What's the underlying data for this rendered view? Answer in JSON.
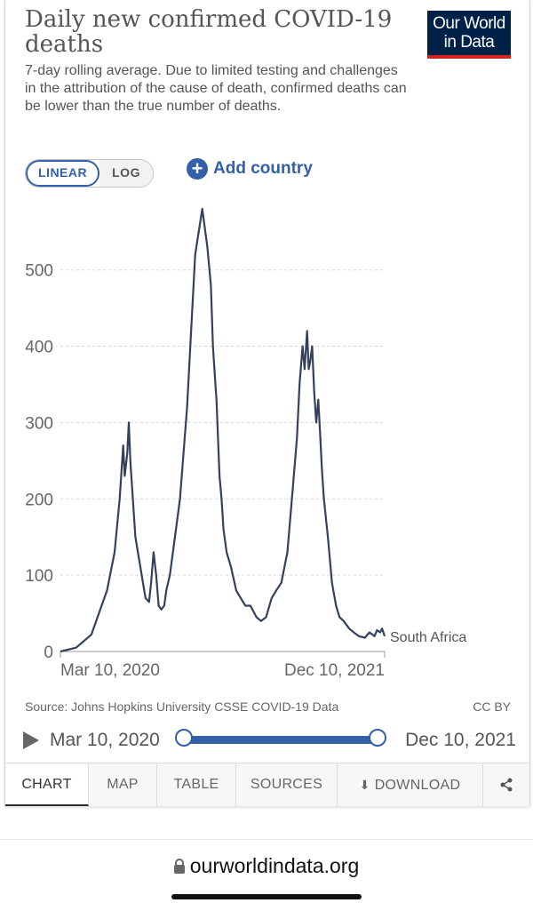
{
  "header": {
    "title": "Daily new confirmed COVID-19 deaths",
    "subtitle": "7-day rolling average. Due to limited testing and challenges in the attribution of the cause of death, confirmed deaths can be lower than the true number of deaths.",
    "logo_line1": "Our World",
    "logo_line2": "in Data"
  },
  "controls": {
    "linear_label": "LINEAR",
    "log_label": "LOG",
    "add_country_label": "Add country",
    "add_icon": "plus-circle-icon"
  },
  "chart_data": {
    "type": "line",
    "title": "Daily new confirmed COVID-19 deaths",
    "xlabel": "",
    "ylabel": "",
    "x_tick_labels": [
      "Mar 10, 2020",
      "Dec 10, 2021"
    ],
    "y_ticks": [
      0,
      100,
      200,
      300,
      400,
      500
    ],
    "ylim": [
      0,
      580
    ],
    "xlim": [
      "2020-03-10",
      "2021-12-10"
    ],
    "grid": "horizontal dashed",
    "series": [
      {
        "name": "South Africa",
        "color": "#33415c",
        "x": [
          "2020-03-10",
          "2020-04-10",
          "2020-05-10",
          "2020-06-10",
          "2020-06-25",
          "2020-07-05",
          "2020-07-12",
          "2020-07-15",
          "2020-07-20",
          "2020-07-23",
          "2020-07-26",
          "2020-08-05",
          "2020-08-15",
          "2020-08-25",
          "2020-09-01",
          "2020-09-05",
          "2020-09-10",
          "2020-09-15",
          "2020-09-20",
          "2020-09-25",
          "2020-10-01",
          "2020-10-05",
          "2020-10-12",
          "2020-10-20",
          "2020-11-01",
          "2020-11-15",
          "2020-12-01",
          "2020-12-15",
          "2020-12-25",
          "2021-01-01",
          "2021-01-05",
          "2021-01-10",
          "2021-01-12",
          "2021-01-15",
          "2021-01-18",
          "2021-01-22",
          "2021-01-26",
          "2021-02-01",
          "2021-02-10",
          "2021-02-20",
          "2021-03-01",
          "2021-03-10",
          "2021-03-20",
          "2021-04-01",
          "2021-04-10",
          "2021-04-20",
          "2021-05-01",
          "2021-05-10",
          "2021-05-20",
          "2021-06-01",
          "2021-06-10",
          "2021-06-20",
          "2021-06-25",
          "2021-07-01",
          "2021-07-05",
          "2021-07-10",
          "2021-07-13",
          "2021-07-16",
          "2021-07-20",
          "2021-07-24",
          "2021-07-28",
          "2021-08-01",
          "2021-08-05",
          "2021-08-08",
          "2021-08-12",
          "2021-08-20",
          "2021-08-28",
          "2021-09-05",
          "2021-09-12",
          "2021-09-20",
          "2021-10-01",
          "2021-10-10",
          "2021-10-20",
          "2021-11-01",
          "2021-11-10",
          "2021-11-20",
          "2021-11-25",
          "2021-12-01",
          "2021-12-05",
          "2021-12-10"
        ],
        "y": [
          0,
          5,
          22,
          80,
          130,
          200,
          270,
          230,
          260,
          300,
          250,
          150,
          110,
          70,
          65,
          90,
          130,
          100,
          60,
          55,
          60,
          80,
          100,
          140,
          200,
          320,
          520,
          580,
          530,
          480,
          400,
          350,
          330,
          280,
          230,
          200,
          160,
          130,
          110,
          80,
          70,
          60,
          60,
          45,
          40,
          45,
          70,
          80,
          90,
          130,
          200,
          280,
          350,
          400,
          370,
          420,
          370,
          380,
          400,
          340,
          300,
          330,
          280,
          240,
          200,
          150,
          90,
          60,
          45,
          40,
          30,
          25,
          20,
          18,
          25,
          20,
          28,
          25,
          30,
          20
        ]
      }
    ]
  },
  "source": {
    "text": "Source: Johns Hopkins University CSSE COVID-19 Data",
    "license": "CC BY"
  },
  "timeline": {
    "start_label": "Mar 10, 2020",
    "end_label": "Dec 10, 2021",
    "range_start_fraction": 0,
    "range_end_fraction": 1
  },
  "tabs": [
    "CHART",
    "MAP",
    "TABLE",
    "SOURCES",
    "DOWNLOAD"
  ],
  "active_tab": "CHART",
  "browser": {
    "url": "ourworldindata.org"
  }
}
